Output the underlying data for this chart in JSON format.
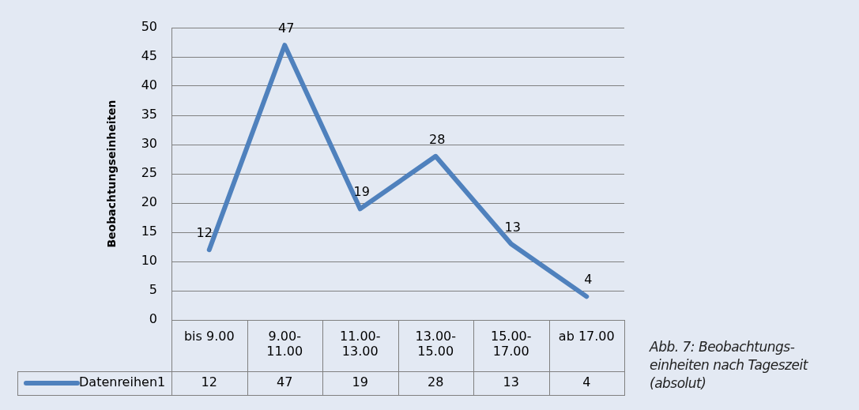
{
  "chart_data": {
    "type": "line",
    "ylabel": "Beobachtungseinheiten",
    "categories": [
      "bis 9.00",
      "9.00-11.00",
      "11.00-13.00",
      "13.00-15.00",
      "15.00-17.00",
      "ab 17.00"
    ],
    "series": [
      {
        "name": "Datenreihen1",
        "color": "#4f81bd",
        "values": [
          12,
          47,
          19,
          28,
          13,
          4
        ],
        "value_labels": [
          "12",
          "47",
          "19",
          "28",
          "13",
          "4"
        ]
      }
    ],
    "ylim": [
      0,
      50
    ],
    "yticks": [
      0,
      5,
      10,
      15,
      20,
      25,
      30,
      35,
      40,
      45,
      50
    ],
    "grid": "y",
    "legend": "bottom",
    "marker": "none",
    "annotations": [
      {
        "text": "12",
        "x": "bis 9.00",
        "y": 12
      },
      {
        "text": "47",
        "x": "9.00-11.00",
        "y": 47
      },
      {
        "text": "19",
        "x": "11.00-13.00",
        "y": 19
      },
      {
        "text": "28",
        "x": "13.00-15.00",
        "y": 28
      },
      {
        "text": "13",
        "x": "15.00-17.00",
        "y": 13
      },
      {
        "text": "4",
        "x": "ab 17.00",
        "y": 4
      },
      "Abb. 7: Beobachtungs-\neinheiten nach Tageszeit\n(absolut)"
    ]
  }
}
